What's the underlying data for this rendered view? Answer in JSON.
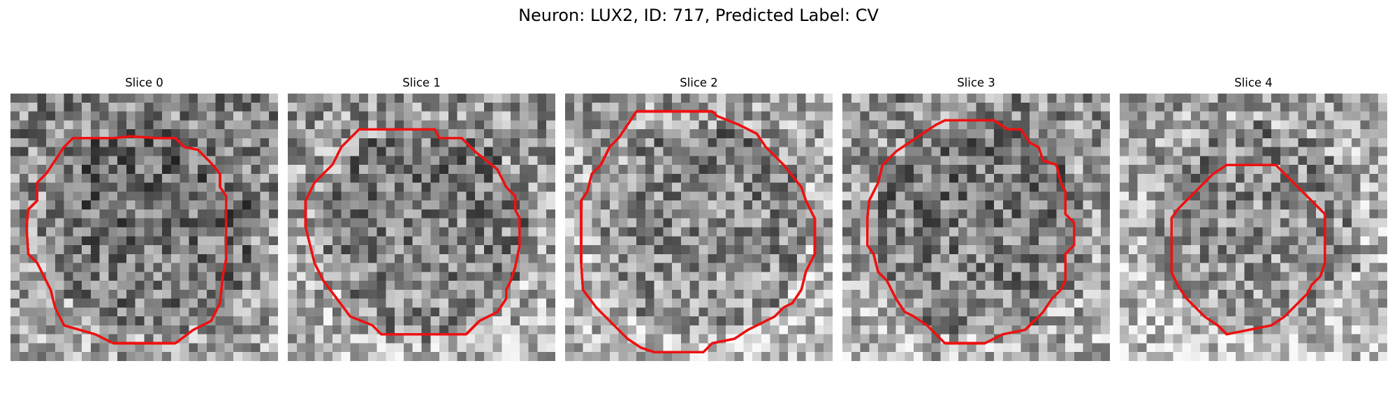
{
  "figure": {
    "title": "Neuron: LUX2, ID: 717, Predicted Label: CV"
  },
  "panels": [
    {
      "title": "Slice 0",
      "outline_color": "#ee1111",
      "seed": 11,
      "bg_shift": -10
    },
    {
      "title": "Slice 1",
      "outline_color": "#ee1111",
      "seed": 23,
      "bg_shift": 5
    },
    {
      "title": "Slice 2",
      "outline_color": "#ee1111",
      "seed": 37,
      "bg_shift": 15
    },
    {
      "title": "Slice 3",
      "outline_color": "#ee1111",
      "seed": 41,
      "bg_shift": 0
    },
    {
      "title": "Slice 4",
      "outline_color": "#ee1111",
      "seed": 53,
      "bg_shift": 20
    }
  ],
  "colormap": "gray"
}
